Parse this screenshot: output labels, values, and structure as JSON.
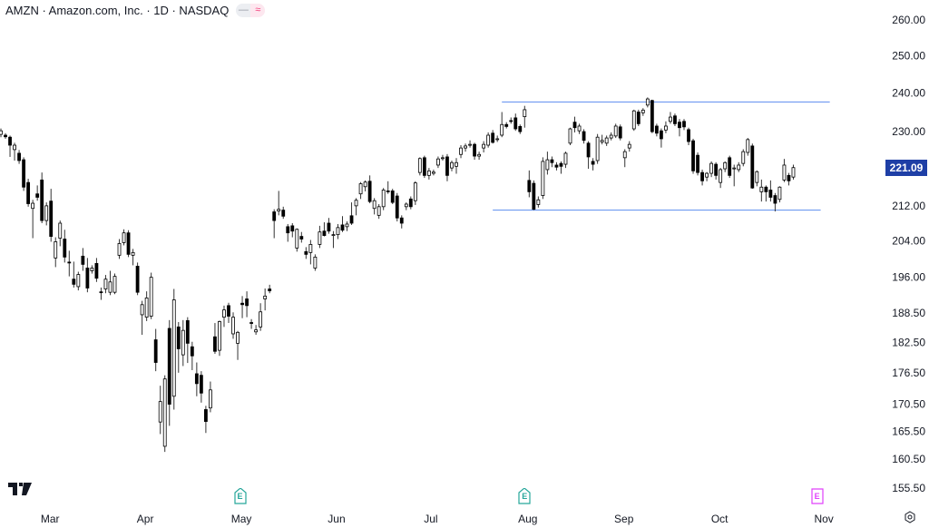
{
  "header": {
    "title": "AMZN · Amazon.com, Inc. · 1D · NASDAQ",
    "pill_left": "—",
    "pill_right": "≈"
  },
  "current_price": {
    "label": "221.09",
    "value": 221.09,
    "color": "#1e3fa6"
  },
  "earnings_markers": [
    {
      "label": "E",
      "index": 52.5,
      "color": "#26a69a"
    },
    {
      "label": "E",
      "index": 115.0,
      "color": "#26a69a"
    },
    {
      "label": "E",
      "index": 179.2,
      "color": "#e040fb"
    }
  ],
  "colors": {
    "line": "#5b8def",
    "up_fill": "#ffffff",
    "down_fill": "#000000",
    "candle_border": "#000000"
  },
  "chart_data": {
    "type": "candlestick",
    "title": "AMZN · Amazon.com, Inc. · 1D · NASDAQ",
    "scale": "log",
    "ylim": [
      155.5,
      260.0
    ],
    "y_ticks": [
      {
        "value": 260.0,
        "label": "260.00"
      },
      {
        "value": 250.0,
        "label": "250.00"
      },
      {
        "value": 240.0,
        "label": "240.00"
      },
      {
        "value": 230.0,
        "label": "230.00"
      },
      {
        "value": 212.0,
        "label": "212.00"
      },
      {
        "value": 204.0,
        "label": "204.00"
      },
      {
        "value": 196.0,
        "label": "196.00"
      },
      {
        "value": 188.5,
        "label": "188.50"
      },
      {
        "value": 182.5,
        "label": "182.50"
      },
      {
        "value": 176.5,
        "label": "176.50"
      },
      {
        "value": 170.5,
        "label": "170.50"
      },
      {
        "value": 165.5,
        "label": "165.50"
      },
      {
        "value": 160.5,
        "label": "160.50"
      },
      {
        "value": 155.5,
        "label": "155.50"
      }
    ],
    "x_ticks": [
      {
        "label": "Mar",
        "index": 10.8
      },
      {
        "label": "Apr",
        "index": 31.7
      },
      {
        "label": "May",
        "index": 52.8
      },
      {
        "label": "Jun",
        "index": 73.7
      },
      {
        "label": "Jul",
        "index": 94.4
      },
      {
        "label": "Aug",
        "index": 115.7
      },
      {
        "label": "Sep",
        "index": 136.8
      },
      {
        "label": "Oct",
        "index": 157.8
      },
      {
        "label": "Nov",
        "index": 180.7
      }
    ],
    "horizontal_lines": [
      {
        "price": 237.6,
        "from_index": 110,
        "to_index": 182
      },
      {
        "price": 211.0,
        "from_index": 108,
        "to_index": 180
      }
    ],
    "ohlc_fields": [
      "open",
      "high",
      "low",
      "close"
    ],
    "candles": [
      [
        229.3,
        230.8,
        228.6,
        230.2
      ],
      [
        229.1,
        229.6,
        228.2,
        228.7
      ],
      [
        228.6,
        229.0,
        223.7,
        226.6
      ],
      [
        225.5,
        227.2,
        222.8,
        226.6
      ],
      [
        224.6,
        225.4,
        222.0,
        222.8
      ],
      [
        223.0,
        223.6,
        215.5,
        216.4
      ],
      [
        217.5,
        218.4,
        211.8,
        212.5
      ],
      [
        211.4,
        213.4,
        204.6,
        212.6
      ],
      [
        214.8,
        216.8,
        213.2,
        214.0
      ],
      [
        218.1,
        219.9,
        208.0,
        208.6
      ],
      [
        208.6,
        212.8,
        207.5,
        212.0
      ],
      [
        213.1,
        216.0,
        203.8,
        205.0
      ],
      [
        200.2,
        204.8,
        198.2,
        203.8
      ],
      [
        204.6,
        208.6,
        202.8,
        208.0
      ],
      [
        204.4,
        206.5,
        199.2,
        200.4
      ],
      [
        199.3,
        201.8,
        196.2,
        199.2
      ],
      [
        195.6,
        199.4,
        193.8,
        194.5
      ],
      [
        194.0,
        197.2,
        193.2,
        196.6
      ],
      [
        200.6,
        202.4,
        197.4,
        198.8
      ],
      [
        198.0,
        200.2,
        192.8,
        193.7
      ],
      [
        197.4,
        198.6,
        196.8,
        198.0
      ],
      [
        199.0,
        200.2,
        195.0,
        195.8
      ],
      [
        192.9,
        193.8,
        191.2,
        192.8
      ],
      [
        193.5,
        196.5,
        192.6,
        195.6
      ],
      [
        192.8,
        197.4,
        192.2,
        195.0
      ],
      [
        192.8,
        196.8,
        192.4,
        196.2
      ],
      [
        200.8,
        204.4,
        200.0,
        203.4
      ],
      [
        203.6,
        206.6,
        203.0,
        205.8
      ],
      [
        205.8,
        206.4,
        200.4,
        201.0
      ],
      [
        200.8,
        202.2,
        198.6,
        201.4
      ],
      [
        198.4,
        199.2,
        192.2,
        192.8
      ],
      [
        188.1,
        191.0,
        184.0,
        190.2
      ],
      [
        187.6,
        193.0,
        186.8,
        191.6
      ],
      [
        187.8,
        197.0,
        187.2,
        196.0
      ],
      [
        183.0,
        185.2,
        176.8,
        178.5
      ],
      [
        167.2,
        174.0,
        165.0,
        171.0
      ],
      [
        162.8,
        176.0,
        161.8,
        175.3
      ],
      [
        185.3,
        187.0,
        166.5,
        170.5
      ],
      [
        172.0,
        193.5,
        169.5,
        191.2
      ],
      [
        185.6,
        186.6,
        176.5,
        181.2
      ],
      [
        180.0,
        187.0,
        177.8,
        184.9
      ],
      [
        186.9,
        187.6,
        178.4,
        182.3
      ],
      [
        181.6,
        182.6,
        177.0,
        179.8
      ],
      [
        176.3,
        178.5,
        172.0,
        174.4
      ],
      [
        176.0,
        176.8,
        170.8,
        172.6
      ],
      [
        169.5,
        170.2,
        165.2,
        167.3
      ],
      [
        169.8,
        174.8,
        169.0,
        173.2
      ],
      [
        183.6,
        186.4,
        180.2,
        180.7
      ],
      [
        180.9,
        186.9,
        179.8,
        186.7
      ],
      [
        187.6,
        190.0,
        185.6,
        189.1
      ],
      [
        190.0,
        190.6,
        186.4,
        187.8
      ],
      [
        184.2,
        188.6,
        183.2,
        187.6
      ],
      [
        182.3,
        184.8,
        179.0,
        184.5
      ],
      [
        190.5,
        192.0,
        187.4,
        190.2
      ],
      [
        191.4,
        193.0,
        187.6,
        190.0
      ],
      [
        186.5,
        187.2,
        185.2,
        186.4
      ],
      [
        184.6,
        186.0,
        184.0,
        185.0
      ],
      [
        185.6,
        190.5,
        184.8,
        188.7
      ],
      [
        191.4,
        193.6,
        189.0,
        192.0
      ],
      [
        193.5,
        194.4,
        192.6,
        193.1
      ],
      [
        210.6,
        211.2,
        204.6,
        208.6
      ],
      [
        210.8,
        215.5,
        209.8,
        211.2
      ],
      [
        211.0,
        211.8,
        209.0,
        209.6
      ],
      [
        207.2,
        207.8,
        203.8,
        205.8
      ],
      [
        207.4,
        208.0,
        204.8,
        206.2
      ],
      [
        202.4,
        206.8,
        201.6,
        206.6
      ],
      [
        205.0,
        206.0,
        203.6,
        204.4
      ],
      [
        201.6,
        202.6,
        200.0,
        201.0
      ],
      [
        201.4,
        204.2,
        198.8,
        203.2
      ],
      [
        198.0,
        201.0,
        197.4,
        200.4
      ],
      [
        203.2,
        207.4,
        202.4,
        206.0
      ],
      [
        206.2,
        208.2,
        205.0,
        205.2
      ],
      [
        208.0,
        209.2,
        205.6,
        206.2
      ],
      [
        205.4,
        206.2,
        202.4,
        205.4
      ],
      [
        205.4,
        207.8,
        204.4,
        207.0
      ],
      [
        207.6,
        209.6,
        206.0,
        206.4
      ],
      [
        207.2,
        208.4,
        206.2,
        207.8
      ],
      [
        209.7,
        212.8,
        207.6,
        208.0
      ],
      [
        212.0,
        213.8,
        209.8,
        213.3
      ],
      [
        214.8,
        217.6,
        213.6,
        217.2
      ],
      [
        216.5,
        218.0,
        215.4,
        217.6
      ],
      [
        217.8,
        219.2,
        212.6,
        213.0
      ],
      [
        211.4,
        213.8,
        210.0,
        213.2
      ],
      [
        209.8,
        212.4,
        209.0,
        211.8
      ],
      [
        211.8,
        216.2,
        211.0,
        215.7
      ],
      [
        215.5,
        217.8,
        214.8,
        215.3
      ],
      [
        215.5,
        216.0,
        212.4,
        212.8
      ],
      [
        214.3,
        215.0,
        208.4,
        209.2
      ],
      [
        209.2,
        209.8,
        206.8,
        208.0
      ],
      [
        211.8,
        212.8,
        211.0,
        212.4
      ],
      [
        213.6,
        214.2,
        211.2,
        211.8
      ],
      [
        213.2,
        217.8,
        212.2,
        217.4
      ],
      [
        219.9,
        223.6,
        219.2,
        223.3
      ],
      [
        223.5,
        224.0,
        218.6,
        219.2
      ],
      [
        219.2,
        221.0,
        218.2,
        220.3
      ],
      [
        219.7,
        220.6,
        219.2,
        220.0
      ],
      [
        221.7,
        223.8,
        221.0,
        223.2
      ],
      [
        223.3,
        224.2,
        222.8,
        223.5
      ],
      [
        223.7,
        224.4,
        217.8,
        219.2
      ],
      [
        221.0,
        222.8,
        220.2,
        222.3
      ],
      [
        221.4,
        223.4,
        219.6,
        222.3
      ],
      [
        224.3,
        226.6,
        223.4,
        225.9
      ],
      [
        225.9,
        227.0,
        225.0,
        226.4
      ],
      [
        226.8,
        227.8,
        226.0,
        226.8
      ],
      [
        226.8,
        227.2,
        223.0,
        223.9
      ],
      [
        223.9,
        225.0,
        223.0,
        224.3
      ],
      [
        225.9,
        227.6,
        224.8,
        226.8
      ],
      [
        226.6,
        229.8,
        226.0,
        229.1
      ],
      [
        229.6,
        230.4,
        227.0,
        227.3
      ],
      [
        228.2,
        229.0,
        227.4,
        228.2
      ],
      [
        229.1,
        235.0,
        228.6,
        231.8
      ],
      [
        231.8,
        232.4,
        230.8,
        231.3
      ],
      [
        232.8,
        233.6,
        232.0,
        232.6
      ],
      [
        233.5,
        234.6,
        230.2,
        230.7
      ],
      [
        231.3,
        231.8,
        229.4,
        230.0
      ],
      [
        233.8,
        236.6,
        231.0,
        235.6
      ],
      [
        218.0,
        220.4,
        214.0,
        215.3
      ],
      [
        217.3,
        218.0,
        211.0,
        211.2
      ],
      [
        212.3,
        214.2,
        211.6,
        213.4
      ],
      [
        214.4,
        223.6,
        213.6,
        222.6
      ],
      [
        220.6,
        225.0,
        219.4,
        223.0
      ],
      [
        223.0,
        223.8,
        221.2,
        222.3
      ],
      [
        221.7,
        222.4,
        220.4,
        221.2
      ],
      [
        222.1,
        222.6,
        219.6,
        221.4
      ],
      [
        221.9,
        225.0,
        221.0,
        224.6
      ],
      [
        227.1,
        231.0,
        226.6,
        230.7
      ],
      [
        232.4,
        233.8,
        229.8,
        231.0
      ],
      [
        230.2,
        232.0,
        229.4,
        231.4
      ],
      [
        230.0,
        230.6,
        227.0,
        227.8
      ],
      [
        227.1,
        227.6,
        220.8,
        223.7
      ],
      [
        222.6,
        223.4,
        220.4,
        221.9
      ],
      [
        222.8,
        229.4,
        222.0,
        228.6
      ],
      [
        227.4,
        229.2,
        226.8,
        227.8
      ],
      [
        227.1,
        229.0,
        226.4,
        228.4
      ],
      [
        228.4,
        229.8,
        227.8,
        229.1
      ],
      [
        228.9,
        232.0,
        228.4,
        231.4
      ],
      [
        231.2,
        231.8,
        227.8,
        228.4
      ],
      [
        223.5,
        225.6,
        221.2,
        225.0
      ],
      [
        225.9,
        227.6,
        225.0,
        226.8
      ],
      [
        230.7,
        235.6,
        230.2,
        235.3
      ],
      [
        235.0,
        235.6,
        231.4,
        232.0
      ],
      [
        234.8,
        236.0,
        234.0,
        235.5
      ],
      [
        236.8,
        238.8,
        236.2,
        238.4
      ],
      [
        238.0,
        238.2,
        229.6,
        230.0
      ],
      [
        231.4,
        232.0,
        228.8,
        229.6
      ],
      [
        230.2,
        230.8,
        226.0,
        228.2
      ],
      [
        230.4,
        232.6,
        229.6,
        231.4
      ],
      [
        232.6,
        235.0,
        232.0,
        233.7
      ],
      [
        234.0,
        234.6,
        231.4,
        232.0
      ],
      [
        232.4,
        233.2,
        228.8,
        231.0
      ],
      [
        232.6,
        233.2,
        230.4,
        231.2
      ],
      [
        230.5,
        231.0,
        226.6,
        227.5
      ],
      [
        227.7,
        228.2,
        219.6,
        220.3
      ],
      [
        224.1,
        224.8,
        219.2,
        219.9
      ],
      [
        219.9,
        220.6,
        216.8,
        217.9
      ],
      [
        218.8,
        220.0,
        217.8,
        219.7
      ],
      [
        219.7,
        222.6,
        218.8,
        222.1
      ],
      [
        221.9,
        222.4,
        218.2,
        219.2
      ],
      [
        217.5,
        221.0,
        216.2,
        220.6
      ],
      [
        220.8,
        222.6,
        220.0,
        222.3
      ],
      [
        223.5,
        224.0,
        218.6,
        219.2
      ],
      [
        221.0,
        221.8,
        216.6,
        221.0
      ],
      [
        220.6,
        222.4,
        220.0,
        221.7
      ],
      [
        222.1,
        225.6,
        221.4,
        225.0
      ],
      [
        224.8,
        228.4,
        224.0,
        228.0
      ],
      [
        226.4,
        227.0,
        216.0,
        216.2
      ],
      [
        217.5,
        220.4,
        216.6,
        220.1
      ],
      [
        215.3,
        218.2,
        213.0,
        216.4
      ],
      [
        216.4,
        216.8,
        213.0,
        215.3
      ],
      [
        215.7,
        218.0,
        213.0,
        214.0
      ],
      [
        214.4,
        215.0,
        210.7,
        212.6
      ],
      [
        213.5,
        216.6,
        212.8,
        216.4
      ],
      [
        218.1,
        223.2,
        217.6,
        221.7
      ],
      [
        219.2,
        219.8,
        216.8,
        217.9
      ],
      [
        218.8,
        221.8,
        218.2,
        221.09
      ]
    ]
  }
}
